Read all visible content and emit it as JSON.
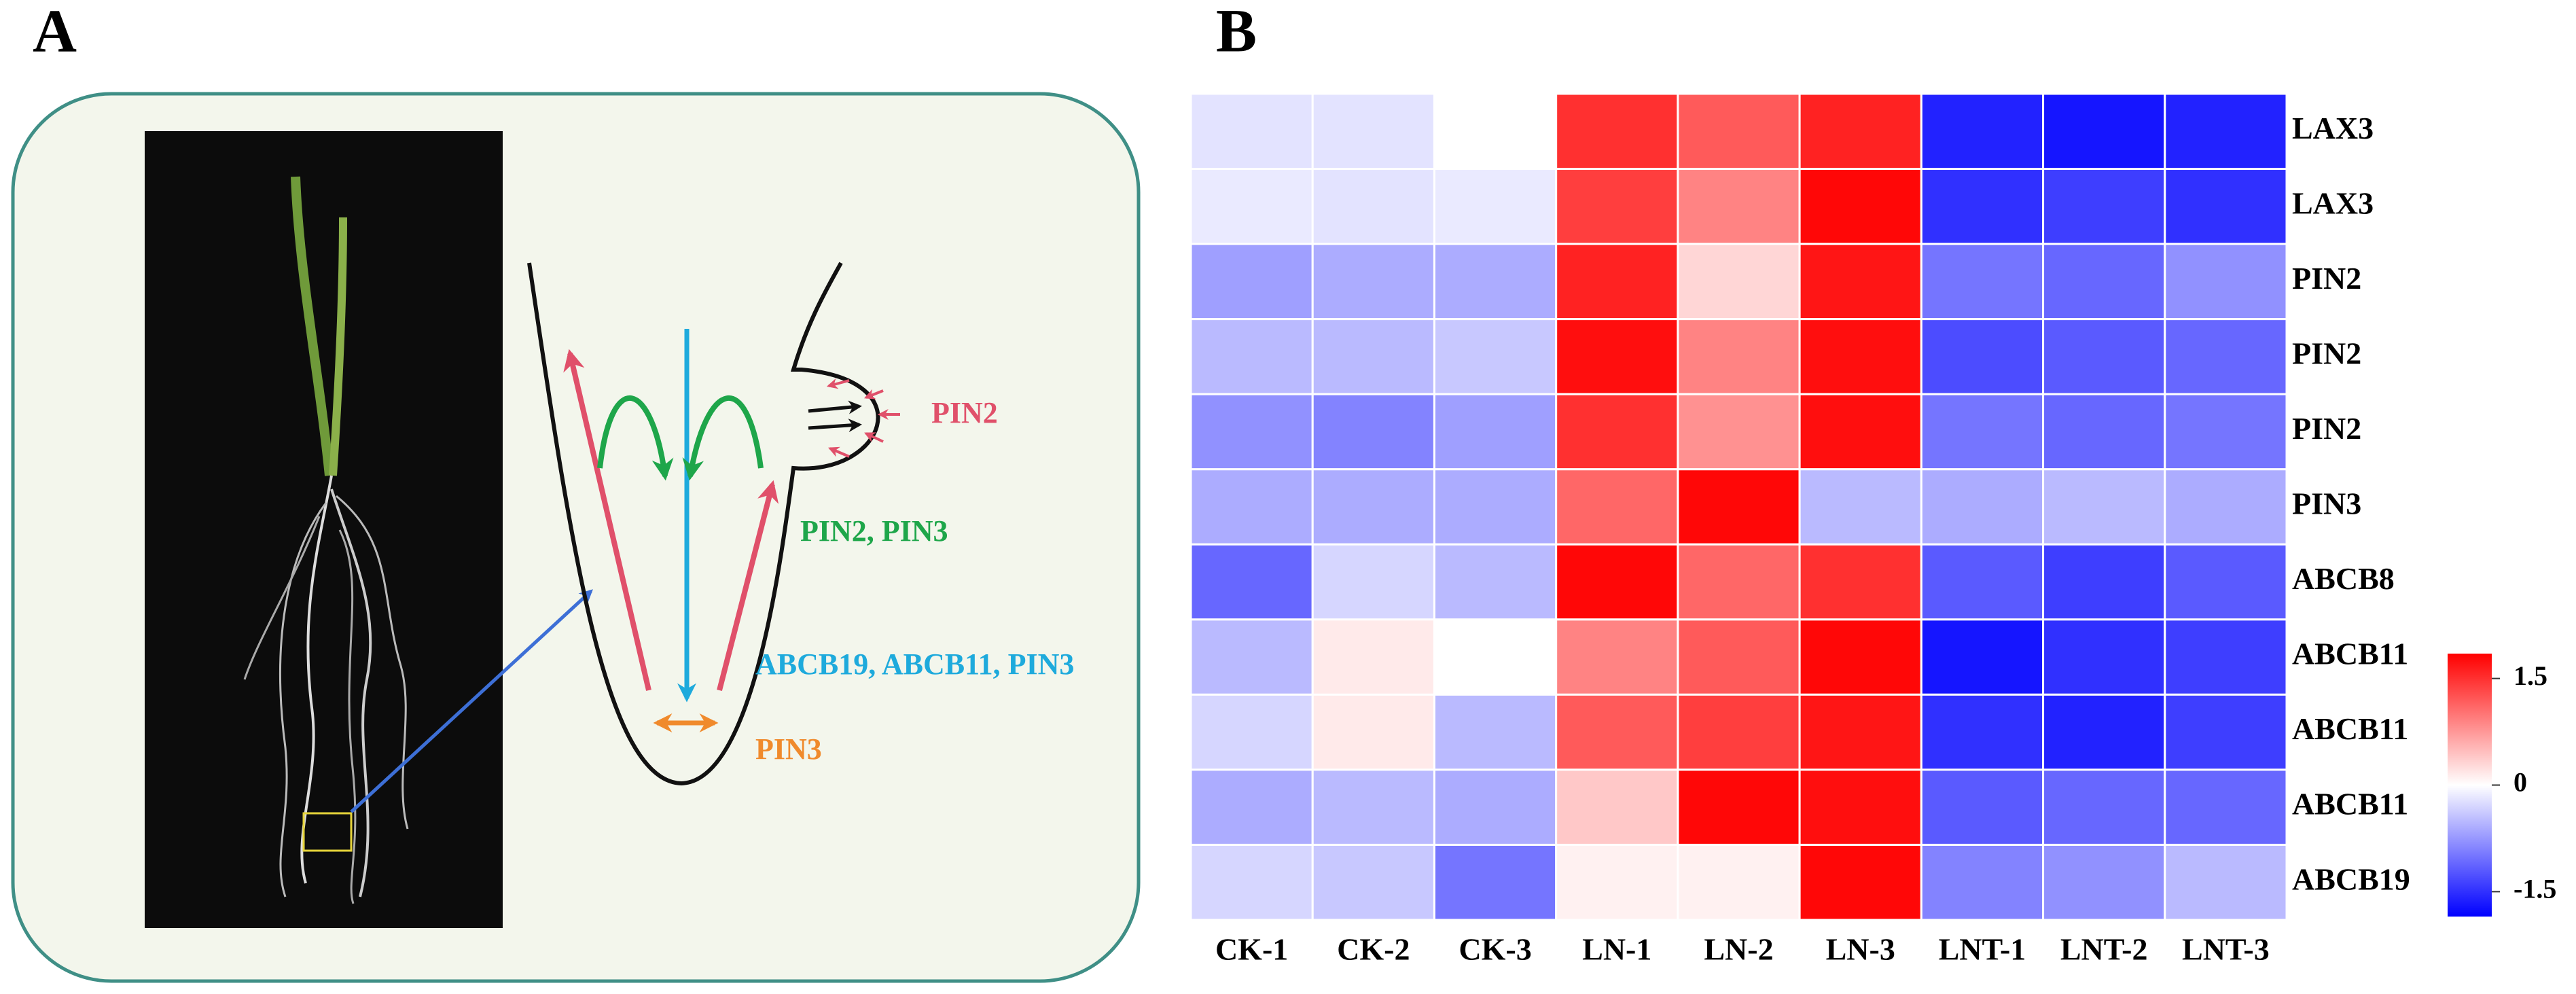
{
  "panel_labels": [
    "A",
    "B"
  ],
  "diagram": {
    "labels": [
      {
        "text": "PIN2",
        "color": "#e0506a"
      },
      {
        "text": "PIN2, PIN3",
        "color": "#1ea64a"
      },
      {
        "text": "ABCB19, ABCB11, PIN3",
        "color": "#1eaadc"
      },
      {
        "text": "PIN3",
        "color": "#f08a2c"
      }
    ]
  },
  "chart_data": {
    "type": "heatmap",
    "rows": [
      "LAX3",
      "LAX3",
      "PIN2",
      "PIN2",
      "PIN2",
      "PIN3",
      "ABCB8",
      "ABCB11",
      "ABCB11",
      "ABCB11",
      "ABCB19"
    ],
    "columns": [
      "CK-1",
      "CK-2",
      "CK-3",
      "LN-1",
      "LN-2",
      "LN-3",
      "LNT-1",
      "LNT-2",
      "LNT-3"
    ],
    "values": [
      [
        -0.2,
        -0.2,
        0,
        1.5,
        1.2,
        1.6,
        -1.6,
        -1.7,
        -1.6
      ],
      [
        -0.15,
        -0.2,
        -0.15,
        1.4,
        0.9,
        1.8,
        -1.5,
        -1.4,
        -1.5
      ],
      [
        -0.7,
        -0.6,
        -0.6,
        1.6,
        0.3,
        1.7,
        -1.0,
        -1.1,
        -0.8
      ],
      [
        -0.5,
        -0.5,
        -0.4,
        1.75,
        0.9,
        1.75,
        -1.3,
        -1.2,
        -1.1
      ],
      [
        -0.8,
        -0.9,
        -0.7,
        1.5,
        0.8,
        1.75,
        -1.0,
        -1.1,
        -1.0
      ],
      [
        -0.6,
        -0.6,
        -0.6,
        1.1,
        1.8,
        -0.5,
        -0.6,
        -0.5,
        -0.6
      ],
      [
        -1.1,
        -0.3,
        -0.5,
        1.8,
        1.1,
        1.5,
        -1.2,
        -1.4,
        -1.2
      ],
      [
        -0.5,
        0.15,
        0,
        0.9,
        1.2,
        1.8,
        -1.7,
        -1.5,
        -1.4
      ],
      [
        -0.3,
        0.15,
        -0.5,
        1.2,
        1.4,
        1.7,
        -1.5,
        -1.6,
        -1.4
      ],
      [
        -0.6,
        -0.5,
        -0.6,
        0.4,
        1.8,
        1.75,
        -1.2,
        -1.1,
        -1.1
      ],
      [
        -0.3,
        -0.4,
        -1.0,
        0.1,
        0.1,
        1.8,
        -0.9,
        -0.8,
        -0.5
      ]
    ],
    "zlim": [
      -1.85,
      1.85
    ],
    "zticks": [
      1.5,
      0,
      -1.5
    ],
    "colors": [
      "#0000ff",
      "#ffffff",
      "#ff0000"
    ]
  }
}
